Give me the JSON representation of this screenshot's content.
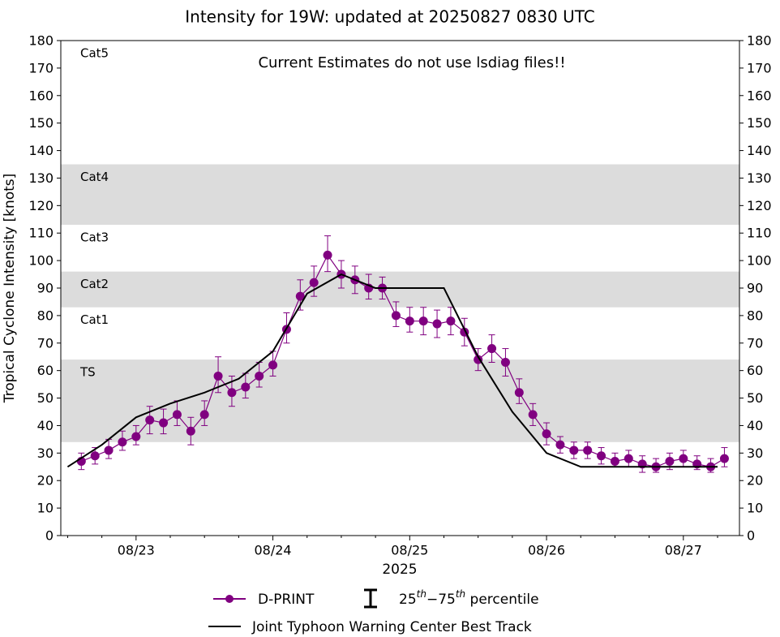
{
  "chart_data": {
    "type": "line",
    "title": "Intensity for 19W: updated at 20250827 0830 UTC",
    "annotation": "Current Estimates do not use lsdiag files!!",
    "ylabel": "Tropical Cyclone Intensity [knots]",
    "xlabel": "2025",
    "xlim": [
      22.45,
      27.41
    ],
    "ylim": [
      0,
      180
    ],
    "yticks": [
      0,
      10,
      20,
      30,
      40,
      50,
      60,
      70,
      80,
      90,
      100,
      110,
      120,
      130,
      140,
      150,
      160,
      170,
      180
    ],
    "xticks": [
      {
        "value": 23,
        "label": "08/23"
      },
      {
        "value": 24,
        "label": "08/24"
      },
      {
        "value": 25,
        "label": "08/25"
      },
      {
        "value": 26,
        "label": "08/26"
      },
      {
        "value": 27,
        "label": "08/27"
      }
    ],
    "xminorticks": [
      22.5,
      22.75,
      23.25,
      23.5,
      23.75,
      24.25,
      24.5,
      24.75,
      25.25,
      25.5,
      25.75,
      26.25,
      26.5,
      26.75,
      27.25
    ],
    "bands": [
      {
        "label": "TS",
        "low": 34,
        "high": 64,
        "shaded": true
      },
      {
        "label": "Cat1",
        "low": 64,
        "high": 83,
        "shaded": false
      },
      {
        "label": "Cat2",
        "low": 83,
        "high": 96,
        "shaded": true
      },
      {
        "label": "Cat3",
        "low": 96,
        "high": 113,
        "shaded": false
      },
      {
        "label": "Cat4",
        "low": 113,
        "high": 135,
        "shaded": true
      },
      {
        "label": "Cat5",
        "low": 135,
        "high": 180,
        "shaded": false
      }
    ],
    "band_color": "#dcdcdc",
    "series": [
      {
        "name": "D-PRINT",
        "color": "#800080",
        "marker": true,
        "x": [
          22.6,
          22.7,
          22.8,
          22.9,
          23.0,
          23.1,
          23.2,
          23.3,
          23.4,
          23.5,
          23.6,
          23.7,
          23.8,
          23.9,
          24.0,
          24.1,
          24.2,
          24.3,
          24.4,
          24.5,
          24.6,
          24.7,
          24.8,
          24.9,
          25.0,
          25.1,
          25.2,
          25.3,
          25.4,
          25.5,
          25.6,
          25.7,
          25.8,
          25.9,
          26.0,
          26.1,
          26.2,
          26.3,
          26.4,
          26.5,
          26.6,
          26.7,
          26.8,
          26.9,
          27.0,
          27.1,
          27.2,
          27.3
        ],
        "values": [
          27,
          29,
          31,
          34,
          36,
          42,
          41,
          44,
          38,
          44,
          58,
          52,
          54,
          58,
          62,
          75,
          87,
          92,
          102,
          95,
          93,
          90,
          90,
          80,
          78,
          78,
          77,
          78,
          74,
          64,
          68,
          63,
          52,
          44,
          37,
          33,
          31,
          31,
          29,
          27,
          28,
          26,
          25,
          27,
          28,
          26,
          25,
          28
        ],
        "p25": [
          24,
          26,
          28,
          31,
          33,
          37,
          37,
          40,
          33,
          40,
          52,
          47,
          50,
          54,
          58,
          70,
          82,
          87,
          96,
          90,
          88,
          86,
          86,
          76,
          74,
          73,
          72,
          73,
          69,
          60,
          63,
          58,
          48,
          40,
          33,
          30,
          28,
          28,
          26,
          25,
          25,
          23,
          23,
          24,
          25,
          24,
          23,
          25
        ],
        "p75": [
          30,
          32,
          35,
          38,
          40,
          47,
          46,
          49,
          43,
          49,
          65,
          58,
          59,
          63,
          67,
          81,
          93,
          98,
          109,
          100,
          98,
          95,
          94,
          85,
          83,
          83,
          82,
          83,
          79,
          68,
          73,
          68,
          57,
          48,
          41,
          36,
          34,
          34,
          32,
          30,
          31,
          29,
          28,
          30,
          31,
          29,
          28,
          32
        ]
      },
      {
        "name": "Joint Typhoon Warning Center Best Track",
        "color": "#000000",
        "marker": false,
        "x": [
          22.5,
          22.75,
          23.0,
          23.25,
          23.5,
          23.75,
          24.0,
          24.25,
          24.5,
          24.75,
          25.0,
          25.25,
          25.5,
          25.75,
          26.0,
          26.25,
          26.5,
          26.75,
          27.0,
          27.25
        ],
        "values": [
          25,
          33,
          43,
          48,
          52,
          57,
          67,
          88,
          95,
          90,
          90,
          90,
          65,
          45,
          30,
          25,
          25,
          25,
          25,
          25
        ]
      }
    ],
    "legend_percentile": [
      {
        "text": "25"
      },
      {
        "text": "th",
        "sup": true
      },
      {
        "text": "−75"
      },
      {
        "text": "th",
        "sup": true
      },
      {
        "text": " percentile"
      }
    ]
  }
}
